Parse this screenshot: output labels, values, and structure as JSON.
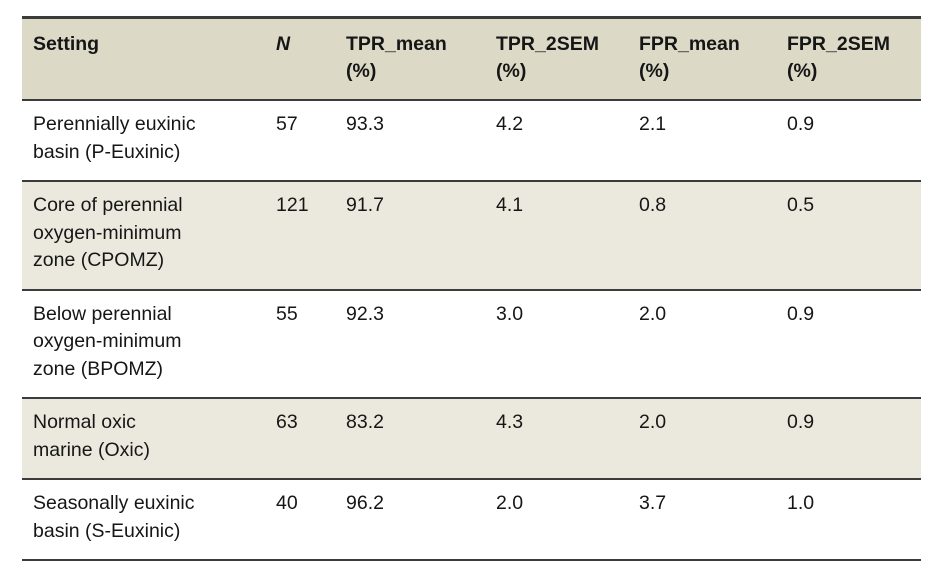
{
  "colors": {
    "header_bg": "#dcdac7",
    "stripe_bg": "#ebe9dd",
    "rule": "#3c3c3c",
    "text": "#161616",
    "page_bg": "#ffffff"
  },
  "table": {
    "header": [
      {
        "line1": "Setting",
        "line2": ""
      },
      {
        "line1": "N",
        "line2": ""
      },
      {
        "line1": "TPR_mean",
        "line2": "(%)"
      },
      {
        "line1": "TPR_2SEM",
        "line2": "(%)"
      },
      {
        "line1": "FPR_mean",
        "line2": "(%)"
      },
      {
        "line1": "FPR_2SEM",
        "line2": "(%)"
      }
    ],
    "rows": [
      {
        "setting": "Perennially euxinic basin (P-Euxinic)",
        "setting_lines": [
          "Perennially euxinic",
          "basin (P-Euxinic)"
        ],
        "n": "57",
        "tpr_mean": "93.3",
        "tpr_2sem": "4.2",
        "fpr_mean": "2.1",
        "fpr_2sem": "0.9"
      },
      {
        "setting": "Core of perennial oxygen-minimum zone (CPOMZ)",
        "setting_lines": [
          "Core of perennial",
          "oxygen-minimum",
          "zone (CPOMZ)"
        ],
        "n": "121",
        "tpr_mean": "91.7",
        "tpr_2sem": "4.1",
        "fpr_mean": "0.8",
        "fpr_2sem": "0.5"
      },
      {
        "setting": "Below perennial oxygen-minimum zone (BPOMZ)",
        "setting_lines": [
          "Below perennial",
          "oxygen-minimum",
          "zone (BPOMZ)"
        ],
        "n": "55",
        "tpr_mean": "92.3",
        "tpr_2sem": "3.0",
        "fpr_mean": "2.0",
        "fpr_2sem": "0.9"
      },
      {
        "setting": "Normal oxic marine (Oxic)",
        "setting_lines": [
          "Normal oxic",
          "marine (Oxic)"
        ],
        "n": "63",
        "tpr_mean": "83.2",
        "tpr_2sem": "4.3",
        "fpr_mean": "2.0",
        "fpr_2sem": "0.9"
      },
      {
        "setting": "Seasonally euxinic basin (S-Euxinic)",
        "setting_lines": [
          "Seasonally euxinic",
          "basin (S-Euxinic)"
        ],
        "n": "40",
        "tpr_mean": "96.2",
        "tpr_2sem": "2.0",
        "fpr_mean": "3.7",
        "fpr_2sem": "1.0"
      }
    ]
  }
}
